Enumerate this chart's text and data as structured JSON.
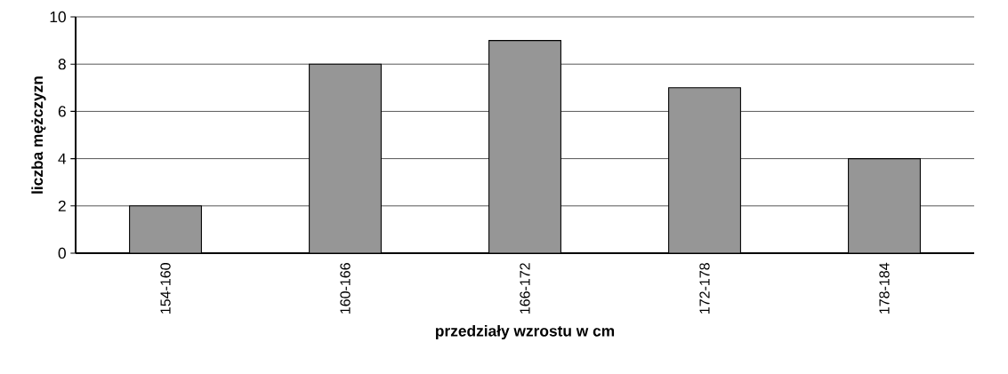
{
  "chart_data": {
    "type": "bar",
    "xlabel": "przedziały wzrostu w cm",
    "ylabel": "liczba mężczyzn",
    "categories": [
      "154-160",
      "160-166",
      "166-172",
      "172-178",
      "178-184"
    ],
    "values": [
      2,
      8,
      9,
      7,
      4
    ],
    "color": "#969696",
    "ylim": [
      0,
      10
    ],
    "yticks": [
      0,
      2,
      4,
      6,
      8,
      10
    ],
    "grid": "y"
  }
}
